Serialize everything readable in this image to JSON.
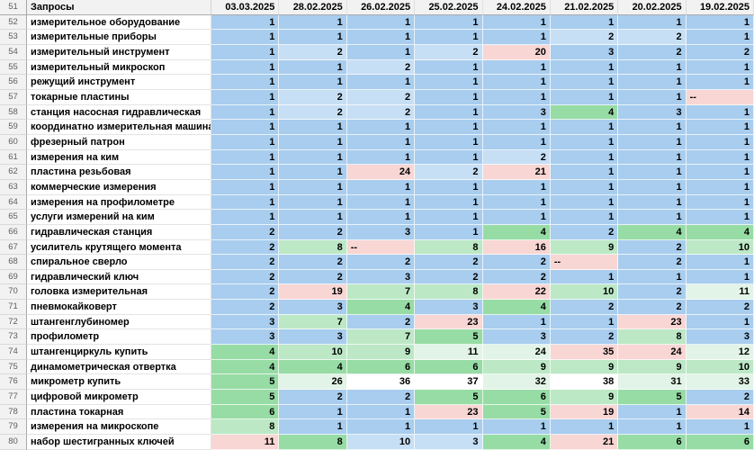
{
  "colors": {
    "b": "#A8CDEE",
    "lb": "#C7DFF5",
    "g": "#97DCA5",
    "lg": "#BCE8C6",
    "pg": "#E2F4E7",
    "p": "#F8D6D4",
    "w": "#FFFFFF",
    "header_bg": "#F2F2F2",
    "label_bg": "#FFFFFF"
  },
  "sheet": {
    "header_row_number": "51",
    "query_header": "Запросы",
    "dates": [
      "03.03.2025",
      "28.02.2025",
      "26.02.2025",
      "25.02.2025",
      "24.02.2025",
      "21.02.2025",
      "20.02.2025",
      "19.02.2025"
    ],
    "rows": [
      {
        "num": "52",
        "label": "измерительное оборудование",
        "values": [
          "1",
          "1",
          "1",
          "1",
          "1",
          "1",
          "1",
          "1"
        ],
        "cell_colors": [
          "b",
          "b",
          "b",
          "b",
          "b",
          "b",
          "b",
          "b"
        ]
      },
      {
        "num": "53",
        "label": "измерительные приборы",
        "values": [
          "1",
          "1",
          "1",
          "1",
          "1",
          "2",
          "2",
          "1"
        ],
        "cell_colors": [
          "b",
          "b",
          "b",
          "b",
          "b",
          "lb",
          "lb",
          "b"
        ]
      },
      {
        "num": "54",
        "label": "измерительный инструмент",
        "values": [
          "1",
          "2",
          "1",
          "2",
          "20",
          "3",
          "2",
          "2"
        ],
        "cell_colors": [
          "b",
          "lb",
          "b",
          "lb",
          "p",
          "b",
          "b",
          "b"
        ]
      },
      {
        "num": "55",
        "label": "измерительный микроскоп",
        "values": [
          "1",
          "1",
          "2",
          "1",
          "1",
          "1",
          "1",
          "1"
        ],
        "cell_colors": [
          "b",
          "b",
          "lb",
          "b",
          "b",
          "b",
          "b",
          "b"
        ]
      },
      {
        "num": "56",
        "label": "режущий инструмент",
        "values": [
          "1",
          "1",
          "1",
          "1",
          "1",
          "1",
          "1",
          "1"
        ],
        "cell_colors": [
          "b",
          "b",
          "b",
          "b",
          "b",
          "b",
          "b",
          "b"
        ]
      },
      {
        "num": "57",
        "label": "токарные пластины",
        "values": [
          "1",
          "2",
          "2",
          "1",
          "1",
          "1",
          "1",
          "--"
        ],
        "cell_colors": [
          "b",
          "lb",
          "lb",
          "b",
          "b",
          "b",
          "b",
          "p"
        ]
      },
      {
        "num": "58",
        "label": "станция насосная гидравлическая",
        "values": [
          "1",
          "2",
          "2",
          "1",
          "3",
          "4",
          "3",
          "1"
        ],
        "cell_colors": [
          "b",
          "lb",
          "lb",
          "b",
          "b",
          "g",
          "b",
          "b"
        ]
      },
      {
        "num": "59",
        "label": "координатно измерительная машина",
        "values": [
          "1",
          "1",
          "1",
          "1",
          "1",
          "1",
          "1",
          "1"
        ],
        "cell_colors": [
          "b",
          "b",
          "b",
          "b",
          "b",
          "b",
          "b",
          "b"
        ]
      },
      {
        "num": "60",
        "label": "фрезерный патрон",
        "values": [
          "1",
          "1",
          "1",
          "1",
          "1",
          "1",
          "1",
          "1"
        ],
        "cell_colors": [
          "b",
          "b",
          "b",
          "b",
          "b",
          "b",
          "b",
          "b"
        ]
      },
      {
        "num": "61",
        "label": "измерения на ким",
        "values": [
          "1",
          "1",
          "1",
          "1",
          "2",
          "1",
          "1",
          "1"
        ],
        "cell_colors": [
          "b",
          "b",
          "b",
          "b",
          "lb",
          "b",
          "b",
          "b"
        ]
      },
      {
        "num": "62",
        "label": "пластина резьбовая",
        "values": [
          "1",
          "1",
          "24",
          "2",
          "21",
          "1",
          "1",
          "1"
        ],
        "cell_colors": [
          "b",
          "b",
          "p",
          "lb",
          "p",
          "b",
          "b",
          "b"
        ]
      },
      {
        "num": "63",
        "label": "коммерческие измерения",
        "values": [
          "1",
          "1",
          "1",
          "1",
          "1",
          "1",
          "1",
          "1"
        ],
        "cell_colors": [
          "b",
          "b",
          "b",
          "b",
          "b",
          "b",
          "b",
          "b"
        ]
      },
      {
        "num": "64",
        "label": "измерения на профилометре",
        "values": [
          "1",
          "1",
          "1",
          "1",
          "1",
          "1",
          "1",
          "1"
        ],
        "cell_colors": [
          "b",
          "b",
          "b",
          "b",
          "b",
          "b",
          "b",
          "b"
        ]
      },
      {
        "num": "65",
        "label": "услуги измерений на ким",
        "values": [
          "1",
          "1",
          "1",
          "1",
          "1",
          "1",
          "1",
          "1"
        ],
        "cell_colors": [
          "b",
          "b",
          "b",
          "b",
          "b",
          "b",
          "b",
          "b"
        ]
      },
      {
        "num": "66",
        "label": "гидравлическая станция",
        "values": [
          "2",
          "2",
          "3",
          "1",
          "4",
          "2",
          "4",
          "4"
        ],
        "cell_colors": [
          "b",
          "b",
          "b",
          "b",
          "g",
          "b",
          "g",
          "g"
        ]
      },
      {
        "num": "67",
        "label": "усилитель крутящего момента",
        "values": [
          "2",
          "8",
          "--",
          "8",
          "16",
          "9",
          "2",
          "10"
        ],
        "cell_colors": [
          "b",
          "lg",
          "p",
          "lg",
          "p",
          "lg",
          "b",
          "lg"
        ]
      },
      {
        "num": "68",
        "label": "спиральное сверло",
        "values": [
          "2",
          "2",
          "2",
          "2",
          "2",
          "--",
          "2",
          "1"
        ],
        "cell_colors": [
          "b",
          "b",
          "b",
          "b",
          "b",
          "p",
          "b",
          "b"
        ]
      },
      {
        "num": "69",
        "label": "гидравлический ключ",
        "values": [
          "2",
          "2",
          "3",
          "2",
          "2",
          "1",
          "1",
          "1"
        ],
        "cell_colors": [
          "b",
          "b",
          "b",
          "b",
          "b",
          "b",
          "b",
          "b"
        ]
      },
      {
        "num": "70",
        "label": "головка измерительная",
        "values": [
          "2",
          "19",
          "7",
          "8",
          "22",
          "10",
          "2",
          "11"
        ],
        "cell_colors": [
          "b",
          "p",
          "lg",
          "lg",
          "p",
          "lg",
          "b",
          "pg"
        ]
      },
      {
        "num": "71",
        "label": "пневмокайковерт",
        "values": [
          "2",
          "3",
          "4",
          "3",
          "4",
          "2",
          "2",
          "2"
        ],
        "cell_colors": [
          "b",
          "b",
          "g",
          "b",
          "g",
          "b",
          "b",
          "b"
        ]
      },
      {
        "num": "72",
        "label": "штангенглубиномер",
        "values": [
          "3",
          "7",
          "2",
          "23",
          "1",
          "1",
          "23",
          "1"
        ],
        "cell_colors": [
          "b",
          "lg",
          "b",
          "p",
          "b",
          "b",
          "p",
          "b"
        ]
      },
      {
        "num": "73",
        "label": "профилометр",
        "values": [
          "3",
          "3",
          "7",
          "5",
          "3",
          "2",
          "8",
          "3"
        ],
        "cell_colors": [
          "b",
          "b",
          "lg",
          "g",
          "b",
          "b",
          "lg",
          "b"
        ]
      },
      {
        "num": "74",
        "label": "штангенциркуль купить",
        "values": [
          "4",
          "10",
          "9",
          "11",
          "24",
          "35",
          "24",
          "12"
        ],
        "cell_colors": [
          "g",
          "lg",
          "lg",
          "pg",
          "pg",
          "p",
          "p",
          "pg"
        ]
      },
      {
        "num": "75",
        "label": "динамометрическая отвертка",
        "values": [
          "4",
          "4",
          "6",
          "6",
          "9",
          "9",
          "9",
          "10"
        ],
        "cell_colors": [
          "g",
          "g",
          "g",
          "g",
          "lg",
          "lg",
          "lg",
          "lg"
        ]
      },
      {
        "num": "76",
        "label": "микрометр купить",
        "values": [
          "5",
          "26",
          "36",
          "37",
          "32",
          "38",
          "31",
          "33"
        ],
        "cell_colors": [
          "g",
          "pg",
          "w",
          "w",
          "pg",
          "w",
          "pg",
          "pg"
        ]
      },
      {
        "num": "77",
        "label": "цифровой микрометр",
        "values": [
          "5",
          "2",
          "2",
          "5",
          "6",
          "9",
          "5",
          "2"
        ],
        "cell_colors": [
          "g",
          "b",
          "b",
          "g",
          "g",
          "lg",
          "g",
          "b"
        ]
      },
      {
        "num": "78",
        "label": "пластина токарная",
        "values": [
          "6",
          "1",
          "1",
          "23",
          "5",
          "19",
          "1",
          "14"
        ],
        "cell_colors": [
          "g",
          "b",
          "b",
          "p",
          "g",
          "p",
          "b",
          "p"
        ]
      },
      {
        "num": "79",
        "label": "измерения на микроскопе",
        "values": [
          "8",
          "1",
          "1",
          "1",
          "1",
          "1",
          "1",
          "1"
        ],
        "cell_colors": [
          "lg",
          "b",
          "b",
          "b",
          "b",
          "b",
          "b",
          "b"
        ]
      },
      {
        "num": "80",
        "label": "набор шестигранных ключей",
        "values": [
          "11",
          "8",
          "10",
          "3",
          "4",
          "21",
          "6",
          "6"
        ],
        "cell_colors": [
          "p",
          "g",
          "lb",
          "lb",
          "g",
          "p",
          "g",
          "g"
        ]
      }
    ]
  }
}
